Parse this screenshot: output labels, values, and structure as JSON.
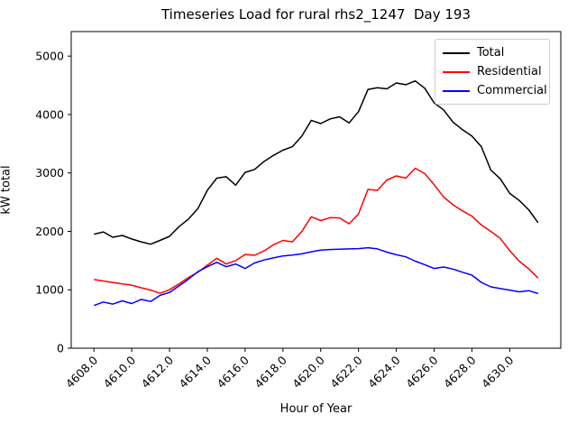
{
  "chart_data": {
    "type": "line",
    "title": "Timeseries Load for rural rhs2_1247  Day 193",
    "xlabel": "Hour of Year",
    "ylabel": "kW total",
    "xlim": [
      4606.8,
      4632.7
    ],
    "ylim": [
      0,
      5420
    ],
    "xtick_labels": [
      "4608.0",
      "4610.0",
      "4612.0",
      "4614.0",
      "4616.0",
      "4618.0",
      "4620.0",
      "4622.0",
      "4624.0",
      "4626.0",
      "4628.0",
      "4630.0"
    ],
    "ytick_labels": [
      "0",
      "1000",
      "2000",
      "3000",
      "4000",
      "5000"
    ],
    "grid": false,
    "legend_position": "upper right",
    "x": [
      4608.0,
      4608.5,
      4609.0,
      4609.5,
      4610.0,
      4610.5,
      4611.0,
      4611.5,
      4612.0,
      4612.5,
      4613.0,
      4613.5,
      4614.0,
      4614.5,
      4615.0,
      4615.5,
      4616.0,
      4616.5,
      4617.0,
      4617.5,
      4618.0,
      4618.5,
      4619.0,
      4619.5,
      4620.0,
      4620.5,
      4621.0,
      4621.5,
      4622.0,
      4622.5,
      4623.0,
      4623.5,
      4624.0,
      4624.5,
      4625.0,
      4625.5,
      4626.0,
      4626.5,
      4627.0,
      4627.5,
      4628.0,
      4628.5,
      4629.0,
      4629.5,
      4630.0,
      4630.5,
      4631.0,
      4631.5
    ],
    "series": [
      {
        "name": "Total",
        "color": "#000000",
        "values": [
          1950,
          1990,
          1900,
          1930,
          1870,
          1820,
          1780,
          1845,
          1915,
          2080,
          2210,
          2390,
          2700,
          2910,
          2935,
          2790,
          3010,
          3060,
          3195,
          3300,
          3390,
          3450,
          3630,
          3900,
          3845,
          3925,
          3960,
          3855,
          4050,
          4430,
          4460,
          4440,
          4540,
          4510,
          4575,
          4450,
          4200,
          4080,
          3870,
          3740,
          3630,
          3450,
          3050,
          2900,
          2650,
          2530,
          2370,
          2150
        ]
      },
      {
        "name": "Residential",
        "color": "#ff0000",
        "values": [
          1175,
          1150,
          1125,
          1100,
          1080,
          1035,
          995,
          940,
          1000,
          1100,
          1210,
          1300,
          1420,
          1540,
          1440,
          1500,
          1605,
          1590,
          1665,
          1770,
          1845,
          1820,
          2000,
          2250,
          2185,
          2235,
          2230,
          2130,
          2300,
          2720,
          2700,
          2880,
          2950,
          2910,
          3080,
          2990,
          2800,
          2590,
          2455,
          2350,
          2260,
          2110,
          2000,
          1880,
          1670,
          1490,
          1360,
          1200
        ]
      },
      {
        "name": "Commercial",
        "color": "#0000ff",
        "values": [
          730,
          790,
          755,
          810,
          765,
          835,
          800,
          905,
          955,
          1065,
          1180,
          1310,
          1395,
          1470,
          1395,
          1440,
          1365,
          1460,
          1510,
          1545,
          1580,
          1595,
          1615,
          1650,
          1680,
          1690,
          1695,
          1700,
          1705,
          1720,
          1700,
          1645,
          1600,
          1565,
          1490,
          1430,
          1365,
          1390,
          1355,
          1300,
          1250,
          1125,
          1050,
          1020,
          995,
          965,
          985,
          935
        ]
      }
    ]
  },
  "colors": {
    "background": "#ffffff",
    "axes": "#000000",
    "tick_text": "#000000",
    "legend_border": "#cccccc"
  }
}
